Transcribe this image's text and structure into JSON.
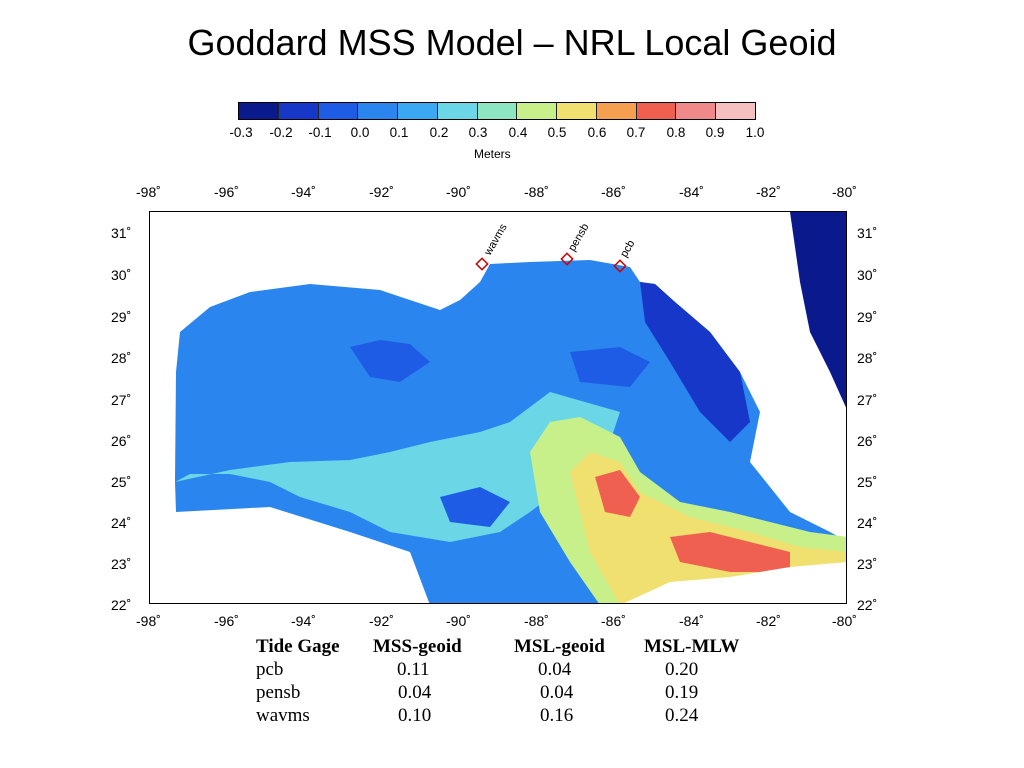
{
  "slide": {
    "title": "Goddard MSS Model – NRL Local Geoid"
  },
  "colorbar": {
    "ticks": [
      "-0.3",
      "-0.2",
      "-0.1",
      "0.0",
      "0.1",
      "0.2",
      "0.3",
      "0.4",
      "0.5",
      "0.6",
      "0.7",
      "0.8",
      "0.9",
      "1.0"
    ],
    "unit": "Meters",
    "colors": [
      "#0a1a8c",
      "#1637c8",
      "#1f5ce6",
      "#2a86ee",
      "#3aa8f2",
      "#6ad6e6",
      "#8ee6c0",
      "#c8f08a",
      "#f0e070",
      "#f5a050",
      "#f06050",
      "#f08a8a",
      "#f5c0c0",
      "#fde8e8"
    ]
  },
  "map": {
    "lon_labels": [
      "-98˚",
      "-96˚",
      "-94˚",
      "-92˚",
      "-90˚",
      "-88˚",
      "-86˚",
      "-84˚",
      "-82˚",
      "-80˚"
    ],
    "lat_labels": [
      "31˚",
      "30˚",
      "29˚",
      "28˚",
      "27˚",
      "26˚",
      "25˚",
      "24˚",
      "23˚",
      "22˚"
    ],
    "stations": [
      {
        "name": "wavms"
      },
      {
        "name": "pensb"
      },
      {
        "name": "pcb"
      }
    ]
  },
  "table": {
    "headers": [
      "Tide Gage",
      "MSS-geoid",
      "MSL-geoid",
      "MSL-MLW"
    ],
    "rows": [
      [
        "pcb",
        "0.11",
        "0.04",
        "0.20"
      ],
      [
        "pensb",
        "0.04",
        "0.04",
        "0.19"
      ],
      [
        "wavms",
        "0.10",
        "0.16",
        "0.24"
      ]
    ]
  }
}
